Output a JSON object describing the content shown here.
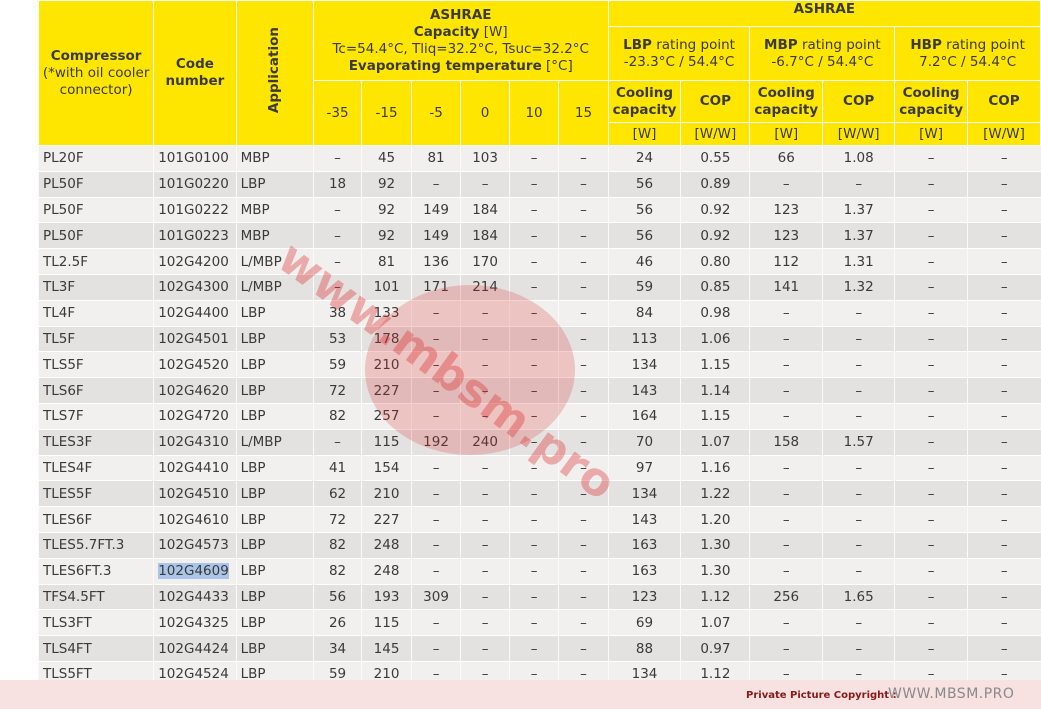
{
  "table": {
    "header": {
      "compressor": "Compressor",
      "compressor_note": "(*with oil cooler connector)",
      "code": "Code number",
      "application": "Application",
      "ashrae_left": {
        "title": "ASHRAE",
        "capacity": "Capacity",
        "capacity_unit": "[W]",
        "conditions": "Tc=54.4°C, Tliq=32.2°C, Tsuc=32.2°C",
        "evap": "Evaporating temperature",
        "evap_unit": "[°C]",
        "temps": [
          "-35",
          "-15",
          "-5",
          "0",
          "10",
          "15"
        ]
      },
      "ashrae_right": {
        "title": "ASHRAE",
        "groups": [
          {
            "name": "LBP",
            "suffix": "rating point",
            "temps": "-23.3°C / 54.4°C"
          },
          {
            "name": "MBP",
            "suffix": "rating point",
            "temps": "-6.7°C / 54.4°C"
          },
          {
            "name": "HBP",
            "suffix": "rating point",
            "temps": "7.2°C / 54.4°C"
          }
        ],
        "cols": [
          "Cooling capacity",
          "COP"
        ],
        "units": [
          "[W]",
          "[W/W]"
        ]
      }
    },
    "rows": [
      [
        "PL20F",
        "101G0100",
        "MBP",
        "–",
        "45",
        "81",
        "103",
        "–",
        "–",
        "24",
        "0.55",
        "66",
        "1.08",
        "–",
        "–"
      ],
      [
        "PL50F",
        "101G0220",
        "LBP",
        "18",
        "92",
        "–",
        "–",
        "–",
        "–",
        "56",
        "0.89",
        "–",
        "–",
        "–",
        "–"
      ],
      [
        "PL50F",
        "101G0222",
        "MBP",
        "–",
        "92",
        "149",
        "184",
        "–",
        "–",
        "56",
        "0.92",
        "123",
        "1.37",
        "–",
        "–"
      ],
      [
        "PL50F",
        "101G0223",
        "MBP",
        "–",
        "92",
        "149",
        "184",
        "–",
        "–",
        "56",
        "0.92",
        "123",
        "1.37",
        "–",
        "–"
      ],
      [
        "TL2.5F",
        "102G4200",
        "L/MBP",
        "–",
        "81",
        "136",
        "170",
        "–",
        "–",
        "46",
        "0.80",
        "112",
        "1.31",
        "–",
        "–"
      ],
      [
        "TL3F",
        "102G4300",
        "L/MBP",
        "–",
        "101",
        "171",
        "214",
        "–",
        "–",
        "59",
        "0.85",
        "141",
        "1.32",
        "–",
        "–"
      ],
      [
        "TL4F",
        "102G4400",
        "LBP",
        "38",
        "133",
        "–",
        "–",
        "–",
        "–",
        "84",
        "0.98",
        "–",
        "–",
        "–",
        "–"
      ],
      [
        "TL5F",
        "102G4501",
        "LBP",
        "53",
        "178",
        "–",
        "–",
        "–",
        "–",
        "113",
        "1.06",
        "–",
        "–",
        "–",
        "–"
      ],
      [
        "TLS5F",
        "102G4520",
        "LBP",
        "59",
        "210",
        "–",
        "–",
        "–",
        "–",
        "134",
        "1.15",
        "–",
        "–",
        "–",
        "–"
      ],
      [
        "TLS6F",
        "102G4620",
        "LBP",
        "72",
        "227",
        "–",
        "–",
        "–",
        "–",
        "143",
        "1.14",
        "–",
        "–",
        "–",
        "–"
      ],
      [
        "TLS7F",
        "102G4720",
        "LBP",
        "82",
        "257",
        "–",
        "–",
        "–",
        "–",
        "164",
        "1.15",
        "–",
        "–",
        "–",
        "–"
      ],
      [
        "TLES3F",
        "102G4310",
        "L/MBP",
        "–",
        "115",
        "192",
        "240",
        "–",
        "–",
        "70",
        "1.07",
        "158",
        "1.57",
        "–",
        "–"
      ],
      [
        "TLES4F",
        "102G4410",
        "LBP",
        "41",
        "154",
        "–",
        "–",
        "–",
        "–",
        "97",
        "1.16",
        "–",
        "–",
        "–",
        "–"
      ],
      [
        "TLES5F",
        "102G4510",
        "LBP",
        "62",
        "210",
        "–",
        "–",
        "–",
        "–",
        "134",
        "1.22",
        "–",
        "–",
        "–",
        "–"
      ],
      [
        "TLES6F",
        "102G4610",
        "LBP",
        "72",
        "227",
        "–",
        "–",
        "–",
        "–",
        "143",
        "1.20",
        "–",
        "–",
        "–",
        "–"
      ],
      [
        "TLES5.7FT.3",
        "102G4573",
        "LBP",
        "82",
        "248",
        "–",
        "–",
        "–",
        "–",
        "163",
        "1.30",
        "–",
        "–",
        "–",
        "–"
      ],
      [
        "TLES6FT.3",
        "102G4609",
        "LBP",
        "82",
        "248",
        "–",
        "–",
        "–",
        "–",
        "163",
        "1.30",
        "–",
        "–",
        "–",
        "–"
      ],
      [
        "TFS4.5FT",
        "102G4433",
        "LBP",
        "56",
        "193",
        "309",
        "–",
        "–",
        "–",
        "123",
        "1.12",
        "256",
        "1.65",
        "–",
        "–"
      ],
      [
        "TLS3FT",
        "102G4325",
        "LBP",
        "26",
        "115",
        "–",
        "–",
        "–",
        "–",
        "69",
        "1.07",
        "–",
        "–",
        "–",
        "–"
      ],
      [
        "TLS4FT",
        "102G4424",
        "LBP",
        "34",
        "145",
        "–",
        "–",
        "–",
        "–",
        "88",
        "0.97",
        "–",
        "–",
        "–",
        "–"
      ],
      [
        "TLS5FT",
        "102G4524",
        "LBP",
        "59",
        "210",
        "–",
        "–",
        "–",
        "–",
        "134",
        "1.12",
        "–",
        "–",
        "–",
        "–"
      ]
    ]
  },
  "watermark": "www.mbsm.pro",
  "footer": {
    "label": "Private Picture Copyright :",
    "site": "WWW.MBSM.PRO"
  }
}
